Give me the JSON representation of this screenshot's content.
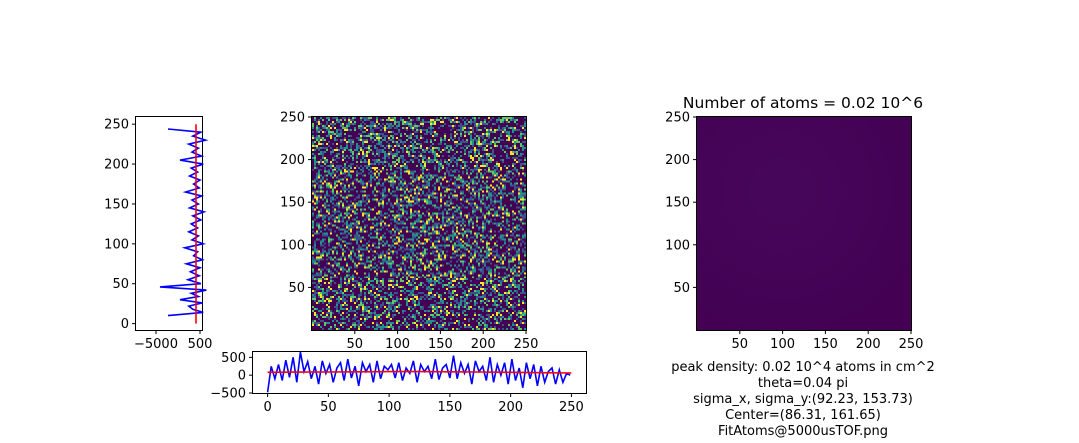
{
  "chart_data": [
    {
      "panel": "vertical-profile",
      "type": "line",
      "xlim": [
        -7500,
        750
      ],
      "ylim": [
        -8,
        259
      ],
      "xticks": [
        -5000,
        500
      ],
      "xtick_labels": [
        "−5000",
        "500"
      ],
      "yticks": [
        0,
        50,
        100,
        150,
        200,
        250
      ],
      "ytick_labels": [
        "0",
        "50",
        "100",
        "150",
        "200",
        "250"
      ],
      "series": [
        {
          "color": "#0000ff",
          "x": [
            -3500,
            900,
            -400,
            -900,
            800,
            -2000,
            300,
            -600,
            1300,
            -4500,
            600,
            -1000,
            400,
            -700,
            500,
            -1200,
            800,
            -300,
            200,
            -1400,
            900,
            -500,
            300,
            -900,
            200,
            -600,
            600,
            -400,
            1000,
            -800,
            300,
            -500,
            700,
            -1300,
            400,
            -300,
            500,
            -800,
            200,
            -600,
            900,
            -2000,
            700,
            -500,
            300,
            -900,
            1200,
            -400,
            600,
            -3500
          ],
          "y": [
            10,
            14,
            18,
            22,
            26,
            30,
            34,
            38,
            42,
            46,
            50,
            55,
            60,
            65,
            70,
            75,
            80,
            85,
            90,
            95,
            100,
            105,
            110,
            115,
            120,
            125,
            130,
            135,
            140,
            145,
            150,
            155,
            160,
            165,
            170,
            175,
            180,
            185,
            190,
            195,
            200,
            205,
            210,
            215,
            220,
            225,
            230,
            235,
            240,
            244
          ]
        },
        {
          "color": "#ff0000",
          "x": [
            0,
            0,
            0,
            0,
            0,
            0,
            0,
            0,
            0,
            0,
            0
          ],
          "y": [
            0,
            25,
            50,
            75,
            100,
            125,
            150,
            175,
            200,
            225,
            250
          ]
        }
      ]
    },
    {
      "panel": "raw-image",
      "type": "heatmap",
      "colormap": [
        "#440154",
        "#3b528b",
        "#21918c",
        "#5ec962",
        "#fde725"
      ],
      "xlim": [
        0,
        250
      ],
      "ylim": [
        0,
        250
      ],
      "xticks": [
        50,
        100,
        150,
        200,
        250
      ],
      "xtick_labels": [
        "50",
        "100",
        "150",
        "200",
        "250"
      ],
      "yticks": [
        50,
        100,
        150,
        200,
        250
      ],
      "ytick_labels": [
        "50",
        "100",
        "150",
        "200",
        "250"
      ]
    },
    {
      "panel": "horizontal-profile",
      "type": "line",
      "xlim": [
        -12,
        262
      ],
      "ylim": [
        -500,
        650
      ],
      "xticks": [
        0,
        50,
        100,
        150,
        200,
        250
      ],
      "xtick_labels": [
        "0",
        "50",
        "100",
        "150",
        "200",
        "250"
      ],
      "yticks": [
        -500,
        0,
        500
      ],
      "ytick_labels": [
        "−500",
        "0",
        "500"
      ],
      "series": [
        {
          "color": "#0000ff",
          "x": [
            0,
            3,
            6,
            9,
            12,
            15,
            18,
            21,
            24,
            27,
            30,
            33,
            36,
            39,
            42,
            45,
            48,
            51,
            54,
            57,
            60,
            63,
            66,
            69,
            72,
            75,
            78,
            81,
            84,
            87,
            90,
            93,
            96,
            99,
            102,
            105,
            108,
            111,
            114,
            117,
            120,
            123,
            126,
            129,
            132,
            135,
            138,
            141,
            144,
            147,
            150,
            153,
            156,
            159,
            162,
            165,
            168,
            171,
            174,
            177,
            180,
            183,
            186,
            189,
            192,
            195,
            198,
            201,
            204,
            207,
            210,
            213,
            216,
            219,
            222,
            225,
            228,
            231,
            234,
            237,
            240,
            243,
            246,
            249
          ],
          "y": [
            -480,
            250,
            -100,
            300,
            -150,
            420,
            -60,
            500,
            -200,
            650,
            100,
            380,
            -100,
            250,
            -250,
            400,
            50,
            300,
            -200,
            200,
            350,
            -150,
            450,
            -80,
            250,
            -300,
            350,
            100,
            300,
            -200,
            400,
            -100,
            250,
            150,
            300,
            -80,
            350,
            -150,
            200,
            50,
            400,
            -200,
            300,
            100,
            250,
            -100,
            450,
            -120,
            200,
            300,
            -80,
            550,
            -100,
            350,
            50,
            300,
            -250,
            400,
            100,
            250,
            -150,
            500,
            -200,
            300,
            0,
            350,
            -250,
            450,
            -150,
            200,
            -350,
            350,
            -100,
            300,
            -300,
            250,
            -200,
            100,
            200,
            -250,
            150,
            -200,
            50,
            0
          ]
        },
        {
          "color": "#ff0000",
          "x": [
            0,
            25,
            50,
            75,
            100,
            125,
            150,
            175,
            200,
            225,
            250
          ],
          "y": [
            80,
            85,
            90,
            95,
            100,
            100,
            95,
            90,
            80,
            70,
            60
          ]
        }
      ]
    },
    {
      "panel": "fit-image",
      "type": "heatmap",
      "title": "Number of atoms = 0.02 10^6",
      "colormap": [
        "#440154",
        "#46075a"
      ],
      "center": [
        86.31,
        161.65
      ],
      "sigma": [
        92.23,
        153.73
      ],
      "xlim": [
        0,
        250
      ],
      "ylim": [
        0,
        250
      ],
      "xticks": [
        50,
        100,
        150,
        200,
        250
      ],
      "xtick_labels": [
        "50",
        "100",
        "150",
        "200",
        "250"
      ],
      "yticks": [
        50,
        100,
        150,
        200,
        250
      ],
      "ytick_labels": [
        "50",
        "100",
        "150",
        "200",
        "250"
      ]
    }
  ],
  "caption": {
    "line1": "peak density: 0.02 10^4 atoms in cm^2",
    "line2": "theta=0.04 pi",
    "line3": "sigma_x, sigma_y:(92.23, 153.73)",
    "line4": "Center=(86.31, 161.65)",
    "line5": "FitAtoms@5000usTOF.png"
  }
}
